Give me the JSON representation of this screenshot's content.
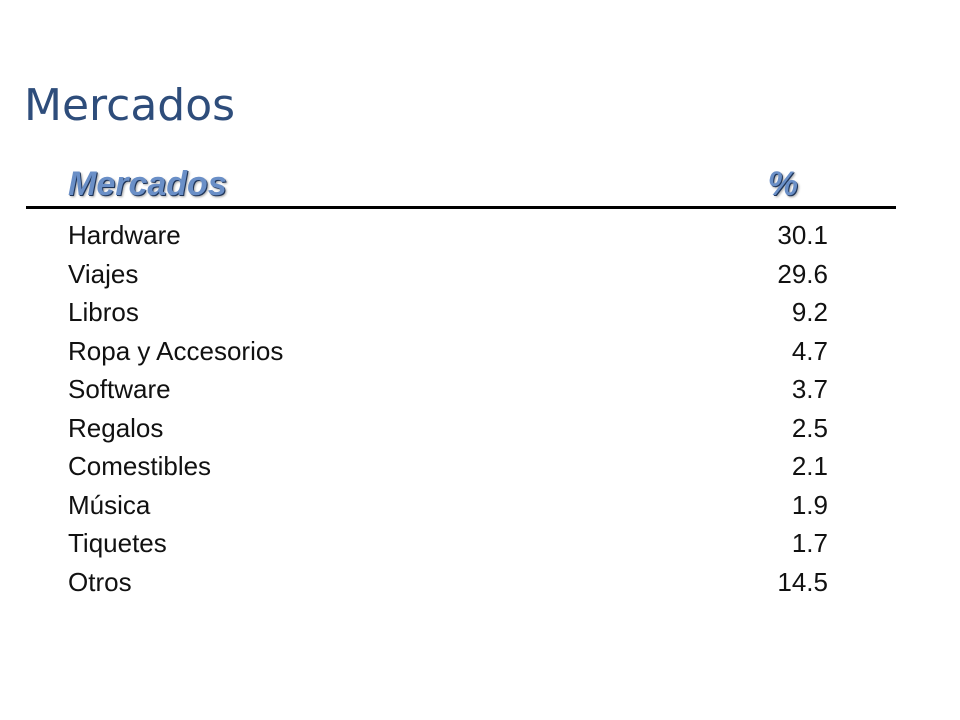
{
  "slide": {
    "title": "Mercados"
  },
  "table": {
    "header": {
      "label": "Mercados",
      "value": "%"
    },
    "rows": [
      {
        "label": "Hardware",
        "value": "30.1"
      },
      {
        "label": "Viajes",
        "value": "29.6"
      },
      {
        "label": "Libros",
        "value": "9.2"
      },
      {
        "label": "Ropa y Accesorios",
        "value": "4.7"
      },
      {
        "label": "Software",
        "value": "3.7"
      },
      {
        "label": "Regalos",
        "value": "2.5"
      },
      {
        "label": "Comestibles",
        "value": "2.1"
      },
      {
        "label": "Música",
        "value": "1.9"
      },
      {
        "label": "Tiquetes",
        "value": "1.7"
      },
      {
        "label": "Otros",
        "value": "14.5"
      }
    ]
  },
  "colors": {
    "title": "#2e4d7b",
    "header_text": "#6a8fc7",
    "rule": "#000000"
  }
}
